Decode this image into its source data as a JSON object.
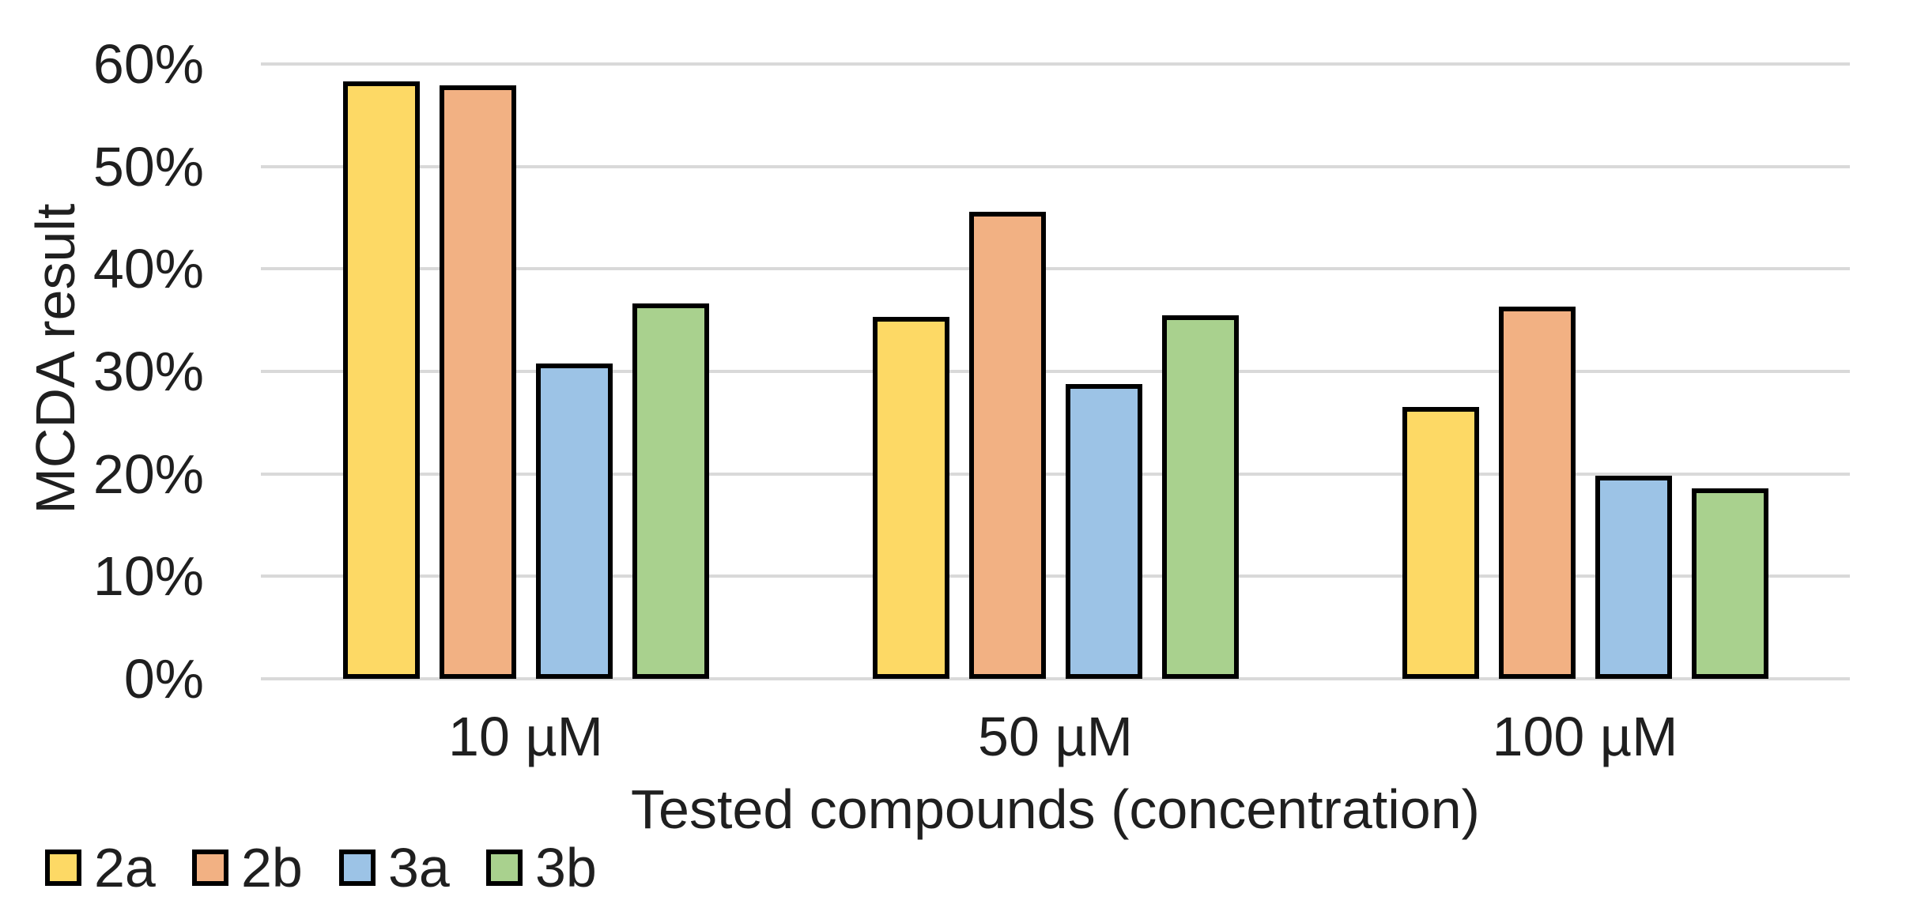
{
  "chart_data": {
    "type": "bar",
    "title": "",
    "categories": [
      "10 µM",
      "50 µM",
      "100 µM"
    ],
    "series": [
      {
        "name": "2a",
        "color": "#FDD965",
        "values": [
          58.3,
          35.3,
          26.5
        ]
      },
      {
        "name": "2b",
        "color": "#F2B183",
        "values": [
          57.9,
          45.6,
          36.3
        ]
      },
      {
        "name": "3a",
        "color": "#9CC3E6",
        "values": [
          30.8,
          28.8,
          19.8
        ]
      },
      {
        "name": "3b",
        "color": "#A9D18E",
        "values": [
          36.6,
          35.5,
          18.6
        ]
      }
    ],
    "xlabel": "Tested compounds (concentration)",
    "ylabel": "MCDA result",
    "y_ticks": [
      "0%",
      "10%",
      "20%",
      "30%",
      "40%",
      "50%",
      "60%"
    ],
    "ylim": [
      0,
      60
    ],
    "y_tick_step": 10,
    "grid": true,
    "legend_position": "bottom-left",
    "colors": {
      "gridline": "#d9d9d9",
      "bar_border": "#000000",
      "text": "#1f1f1f",
      "background": "#ffffff"
    }
  }
}
